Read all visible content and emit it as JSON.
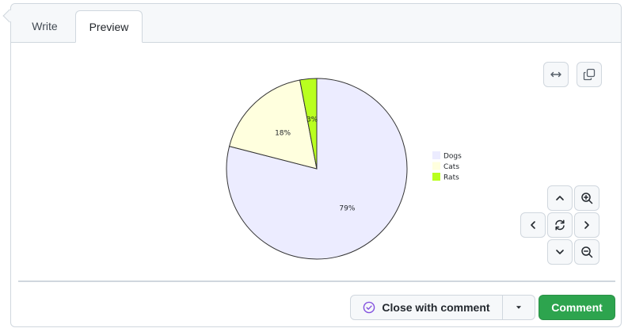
{
  "tabs": [
    {
      "label": "Write",
      "active": false
    },
    {
      "label": "Preview",
      "active": true
    }
  ],
  "toolbar": {
    "expand_icon": "arrows-horizontal-icon",
    "copy_icon": "copy-icon"
  },
  "nav_controls": {
    "up_icon": "chevron-up-icon",
    "zoom_in_icon": "zoom-in-icon",
    "left_icon": "chevron-left-icon",
    "reset_icon": "sync-icon",
    "right_icon": "chevron-right-icon",
    "down_icon": "chevron-down-icon",
    "zoom_out_icon": "zoom-out-icon"
  },
  "chart_data": {
    "type": "pie",
    "categories": [
      "Dogs",
      "Cats",
      "Rats"
    ],
    "values": [
      79,
      18,
      3
    ],
    "labels": [
      "79%",
      "18%",
      "3%"
    ],
    "colors": [
      "#ececff",
      "#ffffde",
      "#b9ff1f"
    ],
    "legend": "right"
  },
  "actions": {
    "close_label": "Close with comment",
    "close_icon": "check-circle-icon",
    "dropdown_icon": "triangle-down-icon",
    "comment_label": "Comment",
    "accent": "#2da44e",
    "close_icon_color": "#8250df"
  }
}
